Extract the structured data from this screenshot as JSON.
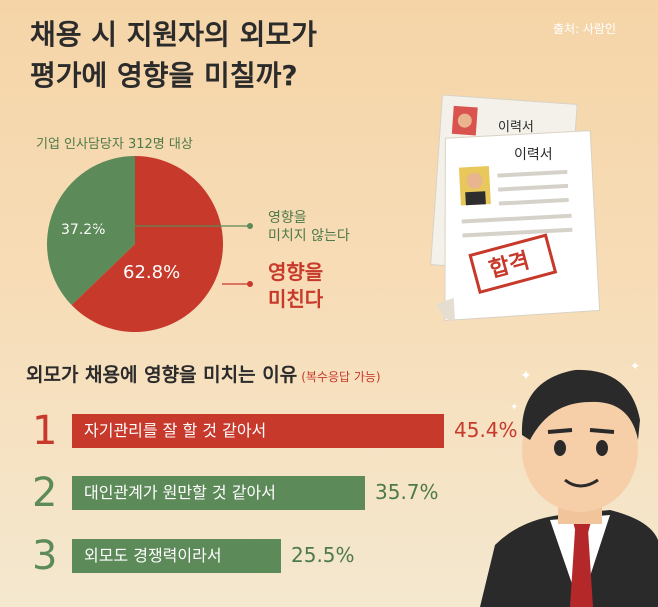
{
  "title_lines": [
    "채용 시 지원자의 외모가",
    "평가에 영향을 미칠까?"
  ],
  "source": "출처: 사람인",
  "survey_caption": "기업 인사담당자 312명 대상",
  "colors": {
    "red": "#c7392b",
    "green": "#5c8a58",
    "background": "#f6d8ae"
  },
  "resume": {
    "header": "이력서",
    "header_back": "이력서",
    "stamp": "합격"
  },
  "reasons": {
    "heading": "외모가 채용에 영향을 미치는 이유",
    "note": "(복수응답 가능)"
  },
  "chart_data": [
    {
      "type": "pie",
      "slices": [
        {
          "label": "영향을 미친다",
          "value": 62.8,
          "value_label": "62.8%",
          "color": "#c7392b"
        },
        {
          "label": "영향을 미치지 않는다",
          "value": 37.2,
          "value_label": "37.2%",
          "color": "#5c8a58"
        }
      ],
      "callouts": {
        "not_affect": [
          "영향을",
          "미치지 않는다"
        ],
        "affect": [
          "영향을",
          "미친다"
        ]
      }
    },
    {
      "type": "bar",
      "categories": [
        "자기관리를 잘 할 것 같아서",
        "대인관계가 원만할 것 같아서",
        "외모도 경쟁력이라서"
      ],
      "ranks": [
        "1",
        "2",
        "3"
      ],
      "values": [
        45.4,
        35.7,
        25.5
      ],
      "value_labels": [
        "45.4%",
        "35.7%",
        "25.5%"
      ],
      "colors": [
        "#c7392b",
        "#5c8a58",
        "#5c8a58"
      ]
    }
  ]
}
